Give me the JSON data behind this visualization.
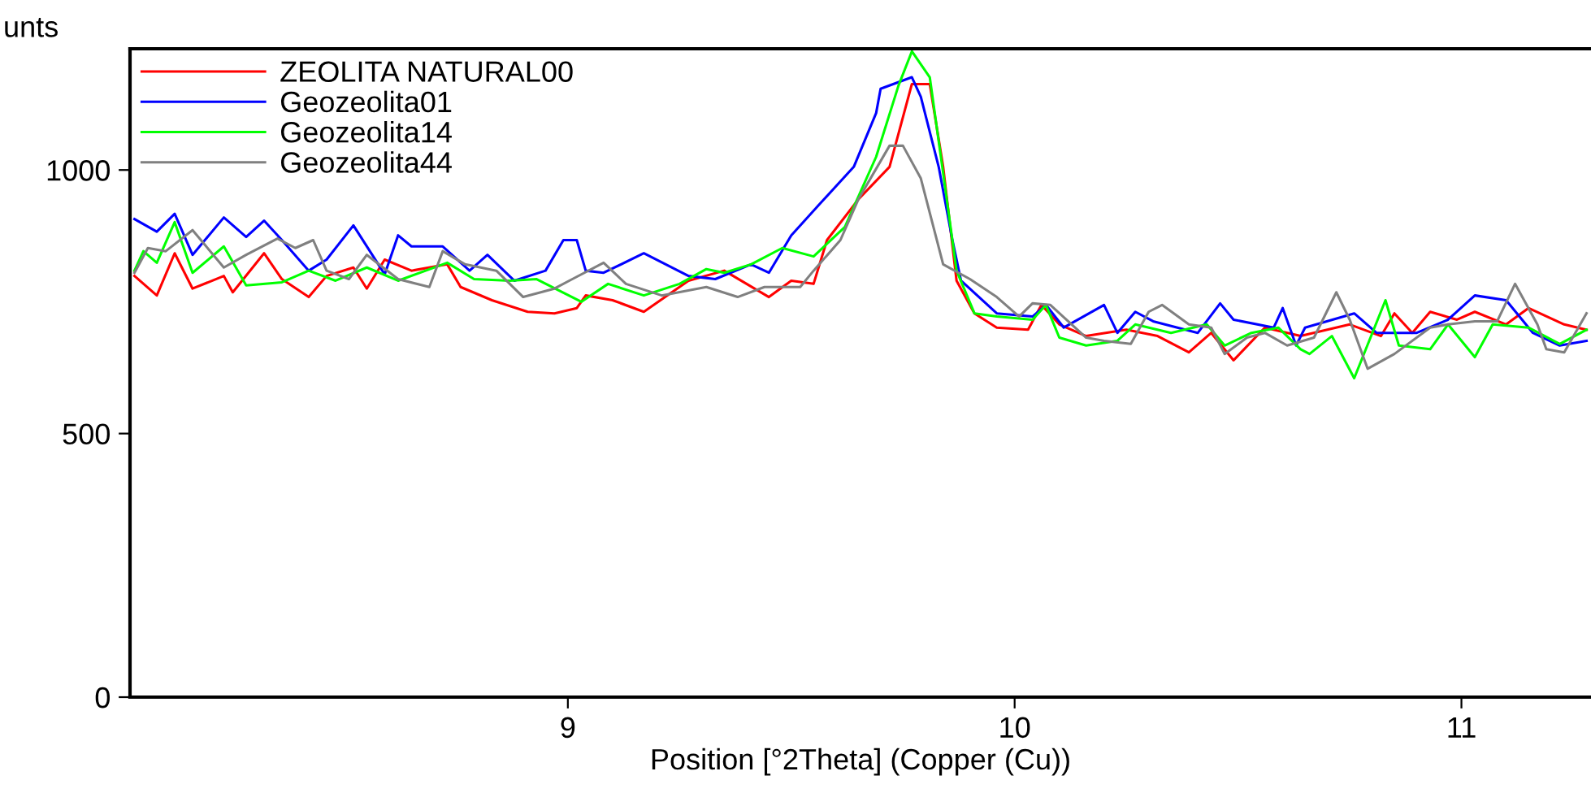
{
  "chart_data": {
    "type": "line",
    "xlabel": "Position [°2Theta] (Copper (Cu))",
    "ylabel": "unts",
    "xlim": [
      8.02,
      11.29
    ],
    "ylim": [
      0,
      1230
    ],
    "xticks": [
      9,
      10,
      11
    ],
    "yticks": [
      0,
      500,
      1000
    ],
    "grid": false,
    "legend": "top left",
    "marker": "none",
    "line_style": "solid",
    "series": [
      {
        "name": "ZEOLITA NATURAL00",
        "color": "#ff0000",
        "x": [
          8.03,
          8.08,
          8.12,
          8.16,
          8.23,
          8.25,
          8.32,
          8.36,
          8.42,
          8.46,
          8.52,
          8.55,
          8.59,
          8.65,
          8.73,
          8.76,
          8.83,
          8.91,
          8.97,
          9.02,
          9.04,
          9.1,
          9.17,
          9.27,
          9.35,
          9.45,
          9.5,
          9.55,
          9.58,
          9.65,
          9.72,
          9.77,
          9.81,
          9.84,
          9.87,
          9.91,
          9.96,
          10.03,
          10.06,
          10.1,
          10.16,
          10.25,
          10.32,
          10.39,
          10.44,
          10.49,
          10.56,
          10.64,
          10.75,
          10.82,
          10.85,
          10.89,
          10.93,
          10.99,
          11.03,
          11.1,
          11.15,
          11.23,
          11.28
        ],
        "values": [
          799,
          762,
          842,
          775,
          799,
          768,
          842,
          793,
          759,
          799,
          815,
          775,
          830,
          809,
          821,
          778,
          753,
          731,
          728,
          738,
          762,
          753,
          731,
          790,
          809,
          759,
          790,
          784,
          867,
          944,
          1006,
          1163,
          1163,
          1006,
          790,
          728,
          701,
          697,
          744,
          707,
          685,
          697,
          685,
          654,
          691,
          639,
          701,
          685,
          707,
          685,
          728,
          691,
          731,
          716,
          731,
          707,
          738,
          707,
          697
        ]
      },
      {
        "name": "Geozeolita01",
        "color": "#0000ff",
        "x": [
          8.03,
          8.08,
          8.12,
          8.16,
          8.23,
          8.28,
          8.32,
          8.36,
          8.42,
          8.46,
          8.52,
          8.59,
          8.62,
          8.65,
          8.72,
          8.78,
          8.82,
          8.88,
          8.95,
          8.99,
          9.02,
          9.04,
          9.08,
          9.17,
          9.27,
          9.33,
          9.41,
          9.45,
          9.5,
          9.56,
          9.64,
          9.69,
          9.7,
          9.77,
          9.79,
          9.83,
          9.86,
          9.88,
          9.96,
          10.04,
          10.07,
          10.11,
          10.2,
          10.23,
          10.27,
          10.31,
          10.41,
          10.46,
          10.49,
          10.58,
          10.6,
          10.63,
          10.65,
          10.76,
          10.81,
          10.9,
          10.97,
          11.03,
          11.1,
          11.16,
          11.22,
          11.28
        ],
        "values": [
          907,
          883,
          917,
          839,
          910,
          873,
          904,
          867,
          809,
          830,
          895,
          802,
          876,
          855,
          855,
          809,
          839,
          790,
          809,
          867,
          867,
          809,
          805,
          842,
          799,
          793,
          821,
          805,
          876,
          932,
          1006,
          1108,
          1154,
          1176,
          1139,
          1006,
          870,
          790,
          728,
          722,
          744,
          701,
          744,
          691,
          731,
          713,
          691,
          747,
          716,
          701,
          738,
          667,
          701,
          728,
          691,
          691,
          716,
          762,
          753,
          691,
          667,
          676
        ]
      },
      {
        "name": "Geozeolita14",
        "color": "#00ff00",
        "x": [
          8.03,
          8.05,
          8.08,
          8.12,
          8.16,
          8.23,
          8.28,
          8.36,
          8.42,
          8.48,
          8.55,
          8.62,
          8.73,
          8.79,
          8.87,
          8.93,
          9.03,
          9.09,
          9.17,
          9.25,
          9.31,
          9.35,
          9.41,
          9.48,
          9.55,
          9.62,
          9.69,
          9.74,
          9.77,
          9.81,
          9.84,
          9.87,
          9.91,
          9.96,
          10.04,
          10.07,
          10.1,
          10.16,
          10.23,
          10.27,
          10.35,
          10.43,
          10.47,
          10.53,
          10.59,
          10.64,
          10.66,
          10.71,
          10.76,
          10.83,
          10.86,
          10.93,
          10.97,
          11.03,
          11.07,
          11.15,
          11.22,
          11.28
        ],
        "values": [
          809,
          846,
          824,
          901,
          805,
          855,
          781,
          787,
          809,
          790,
          815,
          790,
          824,
          793,
          790,
          793,
          750,
          784,
          762,
          784,
          812,
          805,
          821,
          852,
          836,
          892,
          1025,
          1160,
          1225,
          1176,
          994,
          809,
          728,
          722,
          716,
          744,
          682,
          667,
          676,
          707,
          691,
          707,
          667,
          691,
          701,
          660,
          651,
          685,
          605,
          753,
          667,
          660,
          707,
          645,
          707,
          701,
          670,
          697
        ]
      },
      {
        "name": "Geozeolita44",
        "color": "#808080",
        "x": [
          8.03,
          8.06,
          8.1,
          8.16,
          8.23,
          8.28,
          8.35,
          8.39,
          8.43,
          8.46,
          8.51,
          8.55,
          8.62,
          8.69,
          8.72,
          8.77,
          8.84,
          8.9,
          8.97,
          9.01,
          9.08,
          9.13,
          9.21,
          9.31,
          9.38,
          9.44,
          9.52,
          9.55,
          9.61,
          9.65,
          9.72,
          9.75,
          9.79,
          9.84,
          9.9,
          9.96,
          10.01,
          10.04,
          10.08,
          10.16,
          10.2,
          10.26,
          10.3,
          10.33,
          10.39,
          10.44,
          10.47,
          10.52,
          10.56,
          10.61,
          10.67,
          10.72,
          10.75,
          10.79,
          10.85,
          10.93,
          10.97,
          11.03,
          11.08,
          11.12,
          11.17,
          11.19,
          11.23,
          11.28
        ],
        "values": [
          805,
          852,
          846,
          886,
          815,
          839,
          870,
          852,
          867,
          809,
          793,
          839,
          793,
          778,
          846,
          821,
          809,
          759,
          775,
          793,
          824,
          784,
          762,
          778,
          759,
          778,
          778,
          809,
          867,
          944,
          1046,
          1046,
          984,
          821,
          793,
          759,
          722,
          747,
          744,
          682,
          676,
          670,
          731,
          744,
          707,
          701,
          651,
          682,
          691,
          667,
          682,
          768,
          716,
          623,
          651,
          701,
          707,
          713,
          713,
          784,
          707,
          660,
          654,
          728
        ]
      }
    ]
  }
}
